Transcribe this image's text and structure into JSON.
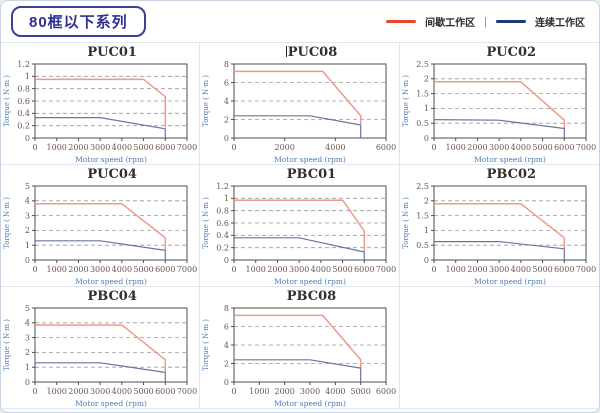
{
  "page": {
    "series_badge": "80框以下系列"
  },
  "legend": {
    "intermittent_label": "间歇工作区",
    "separator": "|",
    "continuous_label": "连续工作区",
    "intermittent_color": "#e8482a",
    "continuous_color": "#1e3a7c"
  },
  "colors": {
    "intermittent_line": "#f0988a",
    "continuous_line": "#68769f",
    "grid": "#9a9a9a",
    "axis_frame": "#4d4d4d",
    "tick_label": "#6b564c",
    "axis_label": "#4a7ab5",
    "title_text": "#332f2b"
  },
  "chart_data": [
    {
      "type": "line",
      "title": "PUC01",
      "xlabel": "Motor speed (rpm)",
      "ylabel": "Torque ( N·m )",
      "xlim": [
        0,
        7000
      ],
      "xticks": [
        0,
        1000,
        2000,
        3000,
        4000,
        5000,
        6000,
        7000
      ],
      "ylim": [
        0,
        1.2
      ],
      "yticks": [
        0,
        0.2,
        0.4,
        0.6,
        0.8,
        1,
        1.2
      ],
      "grid": "horizontal-dashed",
      "cursor": false,
      "series": [
        {
          "name": "间歇工作区",
          "color_key": "intermittent",
          "points": [
            [
              0,
              0.95
            ],
            [
              5000,
              0.95
            ],
            [
              6000,
              0.67
            ],
            [
              6000,
              0.17
            ]
          ]
        },
        {
          "name": "连续工作区",
          "color_key": "continuous",
          "points": [
            [
              0,
              0.33
            ],
            [
              3000,
              0.33
            ],
            [
              6000,
              0.15
            ],
            [
              6000,
              0
            ]
          ]
        }
      ]
    },
    {
      "type": "line",
      "title": "PUC08",
      "xlabel": "Motor speed (rpm)",
      "ylabel": "Torque ( N·m )",
      "xlim": [
        0,
        6000
      ],
      "xticks": [
        0,
        2000,
        4000,
        6000
      ],
      "ylim": [
        0,
        8
      ],
      "yticks": [
        0,
        2,
        4,
        6,
        8
      ],
      "grid": "horizontal-dashed",
      "cursor": true,
      "series": [
        {
          "name": "间歇工作区",
          "color_key": "intermittent",
          "points": [
            [
              0,
              7.2
            ],
            [
              3500,
              7.2
            ],
            [
              5000,
              2.4
            ],
            [
              5000,
              1.5
            ]
          ]
        },
        {
          "name": "连续工作区",
          "color_key": "continuous",
          "points": [
            [
              0,
              2.4
            ],
            [
              3000,
              2.4
            ],
            [
              5000,
              1.4
            ],
            [
              5000,
              0
            ]
          ]
        }
      ]
    },
    {
      "type": "line",
      "title": "PUC02",
      "xlabel": "Motor speed (rpm)",
      "ylabel": "Torque ( N·m )",
      "xlim": [
        0,
        7000
      ],
      "xticks": [
        0,
        1000,
        2000,
        3000,
        4000,
        5000,
        6000,
        7000
      ],
      "ylim": [
        0,
        2.5
      ],
      "yticks": [
        0,
        0.5,
        1,
        1.5,
        2,
        2.5
      ],
      "grid": "horizontal-dashed",
      "cursor": false,
      "series": [
        {
          "name": "间歇工作区",
          "color_key": "intermittent",
          "points": [
            [
              0,
              1.9
            ],
            [
              4000,
              1.9
            ],
            [
              6000,
              0.6
            ],
            [
              6000,
              0.32
            ]
          ]
        },
        {
          "name": "连续工作区",
          "color_key": "continuous",
          "points": [
            [
              0,
              0.62
            ],
            [
              3000,
              0.6
            ],
            [
              6000,
              0.32
            ],
            [
              6000,
              0
            ]
          ]
        }
      ]
    },
    {
      "type": "line",
      "title": "PUC04",
      "xlabel": "Motor speed (rpm)",
      "ylabel": "Torque ( N·m )",
      "xlim": [
        0,
        7000
      ],
      "xticks": [
        0,
        1000,
        2000,
        3000,
        4000,
        5000,
        6000,
        7000
      ],
      "ylim": [
        0,
        5
      ],
      "yticks": [
        0,
        1,
        2,
        3,
        4,
        5
      ],
      "grid": "horizontal-dashed",
      "cursor": false,
      "series": [
        {
          "name": "间歇工作区",
          "color_key": "intermittent",
          "points": [
            [
              0,
              3.8
            ],
            [
              4000,
              3.8
            ],
            [
              6000,
              1.5
            ],
            [
              6000,
              0.7
            ]
          ]
        },
        {
          "name": "连续工作区",
          "color_key": "continuous",
          "points": [
            [
              0,
              1.3
            ],
            [
              3000,
              1.3
            ],
            [
              6000,
              0.65
            ],
            [
              6000,
              0
            ]
          ]
        }
      ]
    },
    {
      "type": "line",
      "title": "PBC01",
      "xlabel": "Motor speed (rpm)",
      "ylabel": "Torque ( N·m )",
      "xlim": [
        0,
        7000
      ],
      "xticks": [
        0,
        1000,
        2000,
        3000,
        4000,
        5000,
        6000,
        7000
      ],
      "ylim": [
        0,
        1.2
      ],
      "yticks": [
        0,
        0.2,
        0.4,
        0.6,
        0.8,
        1,
        1.2
      ],
      "grid": "horizontal-dashed",
      "cursor": false,
      "series": [
        {
          "name": "间歇工作区",
          "color_key": "intermittent",
          "points": [
            [
              0,
              0.97
            ],
            [
              5000,
              0.97
            ],
            [
              6000,
              0.47
            ],
            [
              6000,
              0.14
            ]
          ]
        },
        {
          "name": "连续工作区",
          "color_key": "continuous",
          "points": [
            [
              0,
              0.36
            ],
            [
              3000,
              0.36
            ],
            [
              6000,
              0.13
            ],
            [
              6000,
              0
            ]
          ]
        }
      ]
    },
    {
      "type": "line",
      "title": "PBC02",
      "xlabel": "Motor speed (rpm)",
      "ylabel": "Torque ( N·m )",
      "xlim": [
        0,
        7000
      ],
      "xticks": [
        0,
        1000,
        2000,
        3000,
        4000,
        5000,
        6000,
        7000
      ],
      "ylim": [
        0,
        2.5
      ],
      "yticks": [
        0,
        0.5,
        1,
        1.5,
        2,
        2.5
      ],
      "grid": "horizontal-dashed",
      "cursor": false,
      "series": [
        {
          "name": "间歇工作区",
          "color_key": "intermittent",
          "points": [
            [
              0,
              1.9
            ],
            [
              4000,
              1.9
            ],
            [
              6000,
              0.75
            ],
            [
              6000,
              0.4
            ]
          ]
        },
        {
          "name": "连续工作区",
          "color_key": "continuous",
          "points": [
            [
              0,
              0.62
            ],
            [
              3000,
              0.62
            ],
            [
              6000,
              0.38
            ],
            [
              6000,
              0
            ]
          ]
        }
      ]
    },
    {
      "type": "line",
      "title": "PBC04",
      "xlabel": "Motor speed (rpm)",
      "ylabel": "Torque ( N·m )",
      "xlim": [
        0,
        7000
      ],
      "xticks": [
        0,
        1000,
        2000,
        3000,
        4000,
        5000,
        6000,
        7000
      ],
      "ylim": [
        0,
        5
      ],
      "yticks": [
        0,
        1,
        2,
        3,
        4,
        5
      ],
      "grid": "horizontal-dashed",
      "cursor": false,
      "series": [
        {
          "name": "间歇工作区",
          "color_key": "intermittent",
          "points": [
            [
              0,
              3.85
            ],
            [
              4000,
              3.85
            ],
            [
              6000,
              1.5
            ],
            [
              6000,
              0.7
            ]
          ]
        },
        {
          "name": "连续工作区",
          "color_key": "continuous",
          "points": [
            [
              0,
              1.3
            ],
            [
              3000,
              1.3
            ],
            [
              6000,
              0.65
            ],
            [
              6000,
              0
            ]
          ]
        }
      ]
    },
    {
      "type": "line",
      "title": "PBC08",
      "xlabel": "Motor speed (rpm)",
      "ylabel": "Torque ( N·m )",
      "xlim": [
        0,
        6000
      ],
      "xticks": [
        0,
        1000,
        2000,
        3000,
        4000,
        5000,
        6000
      ],
      "ylim": [
        0,
        8
      ],
      "yticks": [
        0,
        2,
        4,
        6,
        8
      ],
      "grid": "horizontal-dashed",
      "cursor": false,
      "series": [
        {
          "name": "间歇工作区",
          "color_key": "intermittent",
          "points": [
            [
              0,
              7.2
            ],
            [
              3500,
              7.2
            ],
            [
              5000,
              2.4
            ],
            [
              5000,
              1.5
            ]
          ]
        },
        {
          "name": "连续工作区",
          "color_key": "continuous",
          "points": [
            [
              0,
              2.4
            ],
            [
              3000,
              2.4
            ],
            [
              5000,
              1.5
            ],
            [
              5000,
              0
            ]
          ]
        }
      ]
    }
  ]
}
